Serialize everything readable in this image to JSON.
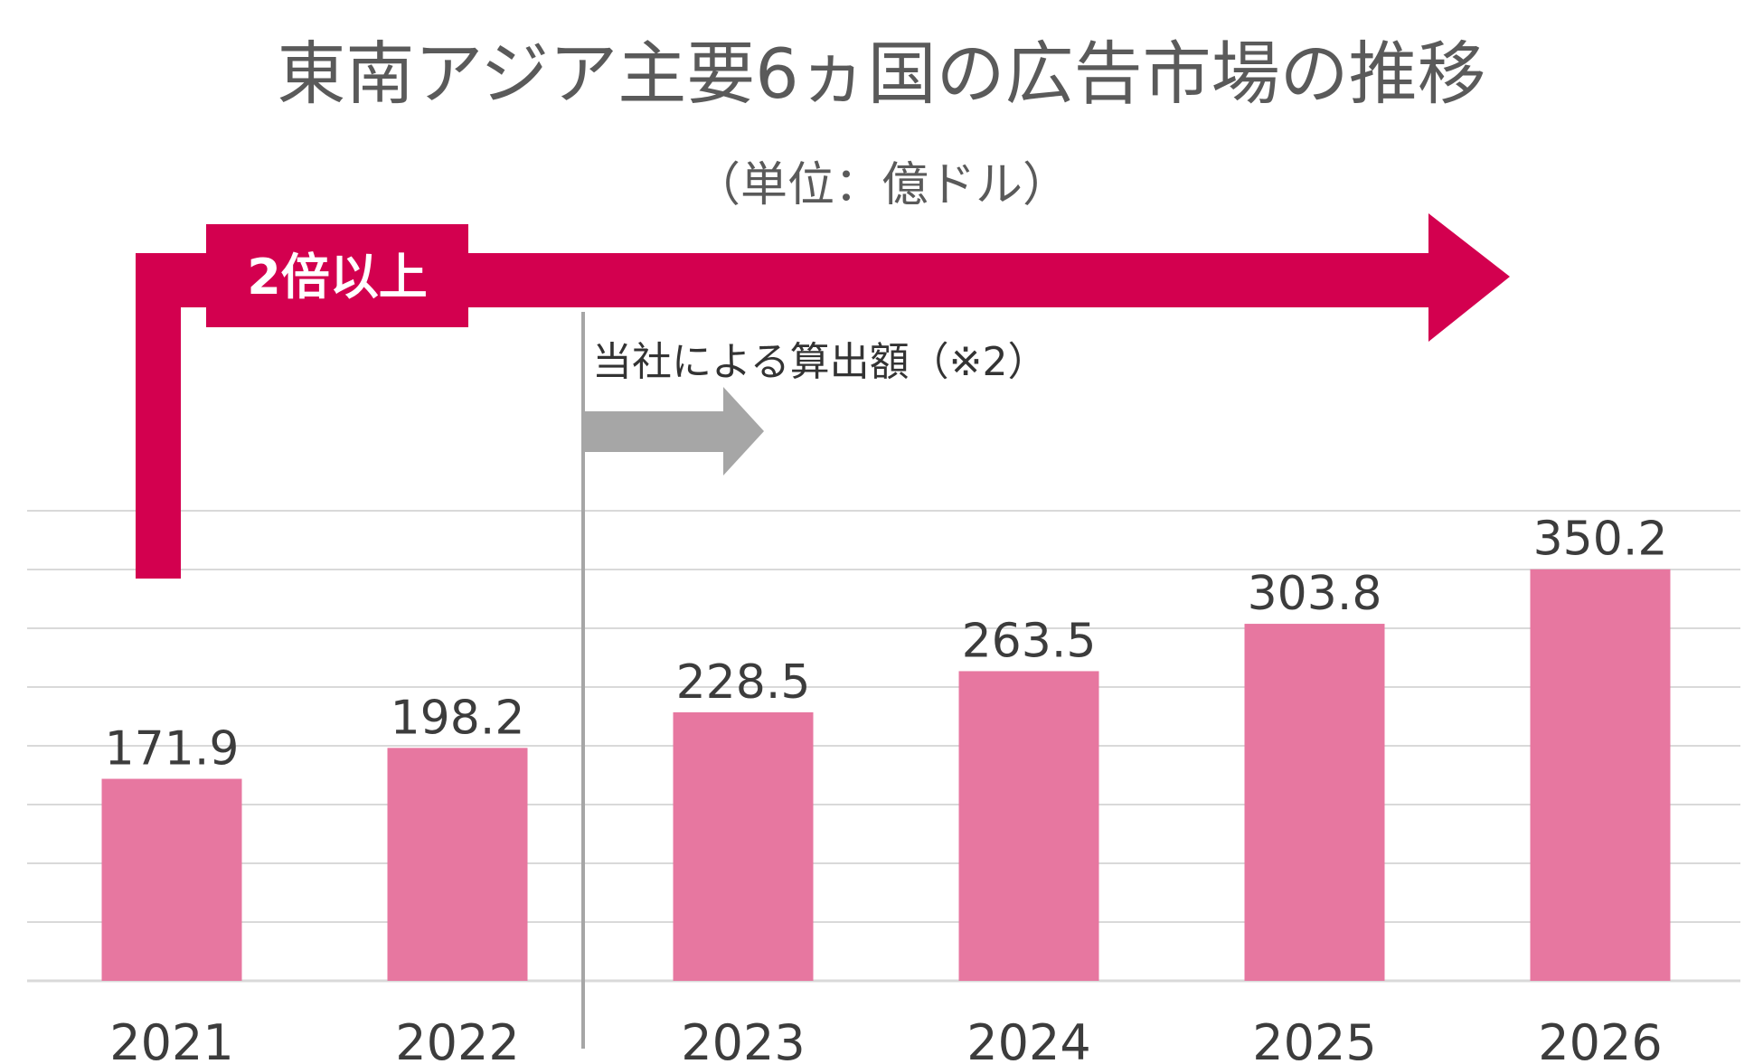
{
  "chart_data": {
    "type": "bar",
    "title": "東南アジア主要6ヵ国の広告市場の推移",
    "subtitle": "（単位：億ドル）",
    "categories": [
      "2021",
      "2022",
      "2023",
      "2024",
      "2025",
      "2026"
    ],
    "values": [
      171.9,
      198.2,
      228.5,
      263.5,
      303.8,
      350.2
    ],
    "value_labels": [
      "171.9",
      "198.2",
      "228.5",
      "263.5",
      "303.8",
      "350.2"
    ],
    "xlabel": "",
    "ylabel": "",
    "ylim": [
      0,
      400
    ],
    "grid": true,
    "legend": "none",
    "annotations": {
      "growth_badge": "2倍以上",
      "estimate_note": "当社による算出額（※2）",
      "estimate_from": "2023"
    }
  },
  "colors": {
    "bar": "#e777a0",
    "growth_arrow": "#d3004f",
    "estimate_arrow": "#a6a6a6",
    "grid": "#d9d9d9",
    "divider": "#a6a6a6"
  }
}
